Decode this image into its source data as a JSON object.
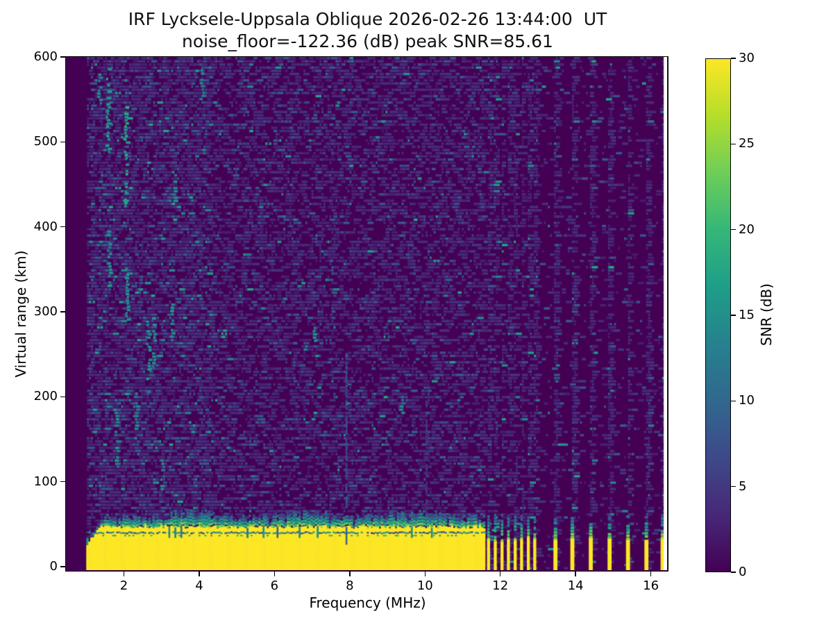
{
  "figure": {
    "background": "#ffffff",
    "title_line1": "IRF Lycksele-Uppsala Oblique 2026-02-26 13:44:00  UT",
    "title_line2": "noise_floor=-122.36 (dB) peak SNR=85.61"
  },
  "chart_data": {
    "type": "heatmap",
    "title": "IRF Lycksele-Uppsala Oblique 2026-02-26 13:44:00  UT",
    "subtitle": "noise_floor=-122.36 (dB) peak SNR=85.61",
    "xlabel": "Frequency (MHz)",
    "ylabel": "Virtual range (km)",
    "xlim": [
      0.46,
      16.45
    ],
    "ylim": [
      -5,
      600
    ],
    "xticks": [
      2,
      4,
      6,
      8,
      10,
      12,
      14,
      16
    ],
    "yticks": [
      0,
      100,
      200,
      300,
      400,
      500,
      600
    ],
    "grid": false,
    "colormap": "viridis",
    "colormap_stops": [
      "#440154",
      "#482878",
      "#3e4a89",
      "#31688e",
      "#26828e",
      "#1f9e89",
      "#35b779",
      "#6ece58",
      "#b5de2b",
      "#fde725"
    ],
    "background_color": "#440154",
    "saturated_color": "#fde725",
    "colorbar": {
      "label": "SNR (dB)",
      "ticks": [
        0,
        5,
        10,
        15,
        20,
        25,
        30
      ],
      "clim": [
        0,
        30
      ],
      "position": "right"
    },
    "noise_floor_db": -122.36,
    "peak_snr_db": 85.61,
    "features": {
      "no_data_below_mhz": 1.0,
      "data_end_mhz": 16.36,
      "sweep_band": {
        "f_start_mhz": 1.0,
        "f_end_mhz": 11.58,
        "ground_echo_top_km": 46,
        "speckle_top_km": 59,
        "ramp_until_mhz": 1.55,
        "ramp_start_top_km": 26,
        "interference_line_km": 40,
        "ground_echo_snr_db": 30
      },
      "discrete_bars_mhz": [
        11.7,
        11.88,
        12.06,
        12.23,
        12.41,
        12.58,
        12.76,
        12.93,
        13.48,
        13.93,
        14.42,
        14.92,
        15.41,
        15.9,
        16.33
      ],
      "bar_top_km": 32,
      "bar_speckle_top_km": 60,
      "echo_streaks": [
        {
          "f_mhz": 7.92,
          "top_km": 255,
          "snr_db": 7
        },
        {
          "f_mhz": 10.05,
          "top_km": 200,
          "snr_db": 5
        }
      ],
      "noise_clusters": [
        {
          "f_mhz": 1.55,
          "km": [
            480,
            590
          ],
          "snr_db": 16
        },
        {
          "f_mhz": 1.58,
          "km": [
            330,
            400
          ],
          "snr_db": 14
        },
        {
          "f_mhz": 1.32,
          "km": [
            545,
            580
          ],
          "snr_db": 13
        },
        {
          "f_mhz": 2.02,
          "km": [
            420,
            545
          ],
          "snr_db": 17
        },
        {
          "f_mhz": 2.05,
          "km": [
            290,
            350
          ],
          "snr_db": 15
        },
        {
          "f_mhz": 1.78,
          "km": [
            120,
            180
          ],
          "snr_db": 14
        },
        {
          "f_mhz": 2.3,
          "km": [
            150,
            205
          ],
          "snr_db": 13
        },
        {
          "f_mhz": 2.62,
          "km": [
            205,
            290
          ],
          "snr_db": 15
        },
        {
          "f_mhz": 2.75,
          "km": [
            235,
            300
          ],
          "snr_db": 14
        },
        {
          "f_mhz": 3.0,
          "km": [
            90,
            130
          ],
          "snr_db": 13
        },
        {
          "f_mhz": 3.25,
          "km": [
            270,
            310
          ],
          "snr_db": 15
        },
        {
          "f_mhz": 3.3,
          "km": [
            430,
            465
          ],
          "snr_db": 13
        },
        {
          "f_mhz": 4.05,
          "km": [
            550,
            585
          ],
          "snr_db": 13
        },
        {
          "f_mhz": 7.05,
          "km": [
            265,
            285
          ],
          "snr_db": 14
        },
        {
          "f_mhz": 9.35,
          "km": [
            180,
            200
          ],
          "snr_db": 12
        }
      ],
      "noise_regions": [
        {
          "f_range_mhz": [
            1.02,
            4.3
          ],
          "p_faint": 0.38,
          "p_mid": 0.1,
          "p_bright": 0.02
        },
        {
          "f_range_mhz": [
            4.3,
            11.58
          ],
          "p_faint": 0.3,
          "p_mid": 0.05,
          "p_bright": 0.007
        },
        {
          "f_range_mhz": [
            11.58,
            16.36
          ],
          "p_faint": 0.05,
          "p_mid": 0.01,
          "p_bright": 0.002
        }
      ],
      "discrete_column_noise_p": 0.5
    }
  }
}
